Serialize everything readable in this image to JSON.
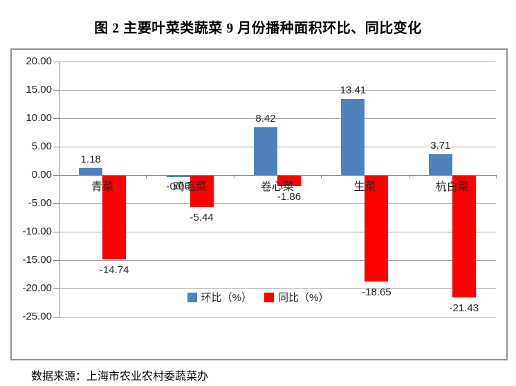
{
  "page": {
    "title": "图 2 主要叶菜类蔬菜 9 月份播种面积环比、同比变化",
    "source_note": "数据来源：上海市农业农村委蔬菜办"
  },
  "chart_data": {
    "type": "bar",
    "title": "图 2 主要叶菜类蔬菜 9 月份播种面积环比、同比变化",
    "categories": [
      "青菜",
      "鸡毛菜",
      "卷心菜",
      "生菜",
      "杭白菜"
    ],
    "series": [
      {
        "name": "环比（%）",
        "key": "mom",
        "color": "#4F81BD",
        "values": [
          1.18,
          -0.06,
          8.42,
          13.41,
          3.71
        ]
      },
      {
        "name": "同比（%）",
        "key": "yoy",
        "color": "#FF0000",
        "values": [
          -14.74,
          -5.44,
          -1.86,
          -18.65,
          -21.43
        ]
      }
    ],
    "y_axis": {
      "min": -25,
      "max": 20,
      "step": 5,
      "tick_labels": [
        "20.00",
        "15.00",
        "10.00",
        "5.00",
        "0.00",
        "-5.00",
        "-10.00",
        "-15.00",
        "-20.00",
        "-25.00"
      ]
    },
    "data_labels": true,
    "grid": true,
    "legend_position": "bottom",
    "colors": {
      "gridline": "#A6A6A6",
      "axis_line": "#808080",
      "chart_border": "#909090",
      "text": "#262626"
    },
    "source_note": "数据来源：上海市农业农村委蔬菜办"
  }
}
